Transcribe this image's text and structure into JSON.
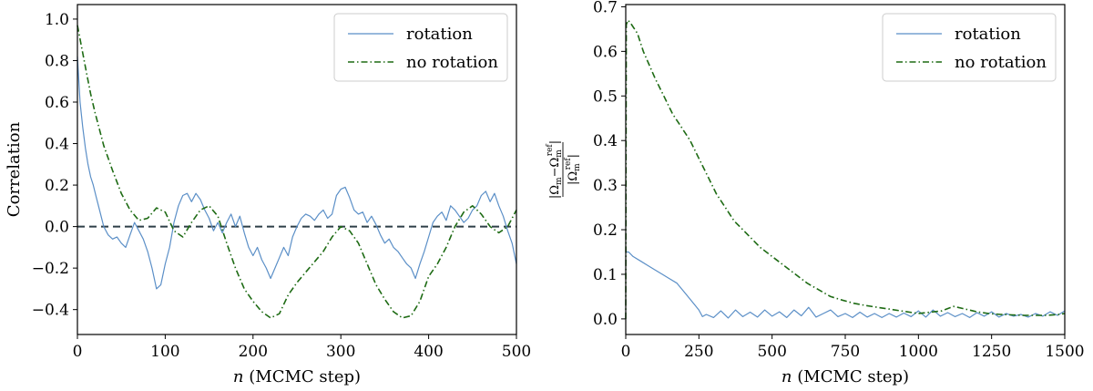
{
  "chart_data": [
    {
      "type": "line",
      "id": "left",
      "xlabel_var": "n",
      "xlabel": "(MCMC step)",
      "ylabel": "Correlation",
      "xlim": [
        0,
        500
      ],
      "ylim": [
        -0.52,
        1.07
      ],
      "xticks": [
        0,
        100,
        200,
        300,
        400,
        500
      ],
      "xtick_labels": [
        "0",
        "100",
        "200",
        "300",
        "400",
        "500"
      ],
      "yticks": [
        -0.4,
        -0.2,
        0.0,
        0.2,
        0.4,
        0.6,
        0.8,
        1.0
      ],
      "ytick_labels": [
        "−0.4",
        "−0.2",
        "0.0",
        "0.2",
        "0.4",
        "0.6",
        "0.8",
        "1.0"
      ],
      "hline": 0.0,
      "legend": {
        "position": "top-right",
        "entries": [
          "rotation",
          "no rotation"
        ]
      },
      "series": [
        {
          "name": "rotation",
          "color": "#5b8fc7",
          "style": "solid",
          "x": [
            0,
            3,
            6,
            9,
            12,
            15,
            18,
            21,
            24,
            27,
            30,
            35,
            40,
            45,
            50,
            55,
            60,
            65,
            70,
            75,
            80,
            85,
            90,
            95,
            100,
            105,
            110,
            115,
            120,
            125,
            130,
            135,
            140,
            145,
            150,
            155,
            160,
            165,
            170,
            175,
            180,
            185,
            190,
            195,
            200,
            205,
            210,
            215,
            220,
            225,
            230,
            235,
            240,
            245,
            250,
            255,
            260,
            265,
            270,
            275,
            280,
            285,
            290,
            295,
            300,
            305,
            310,
            315,
            320,
            325,
            330,
            335,
            340,
            345,
            350,
            355,
            360,
            365,
            370,
            375,
            380,
            385,
            390,
            395,
            400,
            405,
            410,
            415,
            420,
            425,
            430,
            435,
            440,
            445,
            450,
            455,
            460,
            465,
            470,
            475,
            480,
            485,
            490,
            495,
            500
          ],
          "y": [
            0.82,
            0.6,
            0.48,
            0.38,
            0.3,
            0.24,
            0.2,
            0.15,
            0.1,
            0.05,
            0.0,
            -0.04,
            -0.06,
            -0.05,
            -0.08,
            -0.1,
            -0.04,
            0.02,
            -0.02,
            -0.06,
            -0.12,
            -0.2,
            -0.3,
            -0.28,
            -0.18,
            -0.1,
            0.02,
            0.1,
            0.15,
            0.16,
            0.12,
            0.16,
            0.13,
            0.08,
            0.04,
            -0.02,
            0.02,
            -0.03,
            0.02,
            0.06,
            0.0,
            0.05,
            -0.03,
            -0.1,
            -0.14,
            -0.1,
            -0.16,
            -0.2,
            -0.25,
            -0.2,
            -0.15,
            -0.1,
            -0.14,
            -0.05,
            0.0,
            0.04,
            0.06,
            0.05,
            0.03,
            0.06,
            0.08,
            0.04,
            0.06,
            0.15,
            0.18,
            0.19,
            0.14,
            0.08,
            0.06,
            0.07,
            0.02,
            0.05,
            0.01,
            -0.04,
            -0.08,
            -0.06,
            -0.1,
            -0.12,
            -0.15,
            -0.18,
            -0.2,
            -0.25,
            -0.18,
            -0.12,
            -0.05,
            0.02,
            0.05,
            0.07,
            0.03,
            0.1,
            0.08,
            0.05,
            0.02,
            0.04,
            0.08,
            0.1,
            0.15,
            0.17,
            0.12,
            0.16,
            0.1,
            0.05,
            -0.02,
            -0.08,
            -0.18
          ]
        },
        {
          "name": "no rotation",
          "color": "#1e6b14",
          "style": "dashdot",
          "x": [
            0,
            5,
            10,
            15,
            20,
            25,
            30,
            40,
            50,
            60,
            70,
            80,
            90,
            100,
            110,
            120,
            130,
            140,
            150,
            160,
            170,
            180,
            190,
            200,
            210,
            220,
            230,
            240,
            250,
            260,
            270,
            280,
            290,
            300,
            310,
            320,
            330,
            340,
            350,
            360,
            370,
            380,
            390,
            400,
            410,
            420,
            430,
            440,
            450,
            460,
            470,
            480,
            490,
            500
          ],
          "y": [
            0.97,
            0.86,
            0.75,
            0.64,
            0.55,
            0.47,
            0.39,
            0.27,
            0.16,
            0.08,
            0.03,
            0.04,
            0.09,
            0.07,
            -0.02,
            -0.05,
            0.02,
            0.08,
            0.1,
            0.05,
            -0.08,
            -0.2,
            -0.3,
            -0.36,
            -0.41,
            -0.44,
            -0.42,
            -0.33,
            -0.27,
            -0.22,
            -0.17,
            -0.12,
            -0.05,
            0.0,
            -0.02,
            -0.08,
            -0.18,
            -0.28,
            -0.35,
            -0.41,
            -0.44,
            -0.43,
            -0.36,
            -0.24,
            -0.18,
            -0.1,
            0.0,
            0.07,
            0.1,
            0.06,
            0.0,
            -0.03,
            0.0,
            0.08
          ]
        }
      ]
    },
    {
      "type": "line",
      "id": "right",
      "xlabel_var": "n",
      "xlabel": "(MCMC step)",
      "ylabel": "|Ωm − Ωm^ref| / |Ωm^ref|",
      "xlim": [
        0,
        1500
      ],
      "ylim": [
        -0.035,
        0.705
      ],
      "xticks": [
        0,
        250,
        500,
        750,
        1000,
        1250,
        1500
      ],
      "xtick_labels": [
        "0",
        "250",
        "500",
        "750",
        "1000",
        "1250",
        "1500"
      ],
      "yticks": [
        0.0,
        0.1,
        0.2,
        0.3,
        0.4,
        0.5,
        0.6,
        0.7
      ],
      "ytick_labels": [
        "0.0",
        "0.1",
        "0.2",
        "0.3",
        "0.4",
        "0.5",
        "0.6",
        "0.7"
      ],
      "legend": {
        "position": "top-right",
        "entries": [
          "rotation",
          "no rotation"
        ]
      },
      "series": [
        {
          "name": "rotation",
          "color": "#5b8fc7",
          "style": "solid",
          "x": [
            0,
            10,
            25,
            50,
            75,
            100,
            125,
            150,
            175,
            200,
            225,
            250,
            262,
            275,
            300,
            325,
            350,
            375,
            400,
            425,
            450,
            475,
            500,
            525,
            550,
            575,
            600,
            625,
            650,
            675,
            700,
            725,
            750,
            775,
            800,
            825,
            850,
            875,
            900,
            925,
            950,
            975,
            1000,
            1025,
            1050,
            1075,
            1100,
            1125,
            1150,
            1175,
            1200,
            1225,
            1250,
            1275,
            1300,
            1325,
            1350,
            1375,
            1400,
            1425,
            1450,
            1475,
            1500
          ],
          "y": [
            0.15,
            0.15,
            0.14,
            0.13,
            0.12,
            0.11,
            0.1,
            0.09,
            0.08,
            0.06,
            0.04,
            0.02,
            0.005,
            0.01,
            0.003,
            0.018,
            0.002,
            0.02,
            0.005,
            0.015,
            0.004,
            0.02,
            0.006,
            0.016,
            0.003,
            0.02,
            0.007,
            0.026,
            0.004,
            0.012,
            0.02,
            0.005,
            0.012,
            0.003,
            0.015,
            0.004,
            0.012,
            0.003,
            0.012,
            0.004,
            0.013,
            0.005,
            0.018,
            0.004,
            0.02,
            0.006,
            0.014,
            0.005,
            0.012,
            0.003,
            0.014,
            0.006,
            0.016,
            0.004,
            0.012,
            0.006,
            0.01,
            0.004,
            0.012,
            0.006,
            0.016,
            0.008,
            0.018
          ]
        },
        {
          "name": "no rotation",
          "color": "#1e6b14",
          "style": "dashdot",
          "x": [
            0,
            2,
            8,
            20,
            40,
            60,
            80,
            100,
            130,
            160,
            190,
            220,
            250,
            280,
            310,
            340,
            370,
            400,
            430,
            460,
            500,
            540,
            580,
            620,
            660,
            700,
            740,
            780,
            820,
            860,
            900,
            940,
            980,
            1000,
            1040,
            1080,
            1120,
            1160,
            1200,
            1240,
            1280,
            1320,
            1360,
            1400,
            1440,
            1480,
            1500
          ],
          "y": [
            0.0,
            0.66,
            0.67,
            0.66,
            0.64,
            0.6,
            0.57,
            0.54,
            0.5,
            0.46,
            0.43,
            0.4,
            0.36,
            0.32,
            0.28,
            0.25,
            0.22,
            0.2,
            0.18,
            0.16,
            0.14,
            0.12,
            0.1,
            0.08,
            0.065,
            0.05,
            0.042,
            0.035,
            0.03,
            0.026,
            0.022,
            0.018,
            0.014,
            0.012,
            0.015,
            0.018,
            0.028,
            0.022,
            0.016,
            0.012,
            0.01,
            0.009,
            0.008,
            0.008,
            0.008,
            0.01,
            0.012
          ]
        }
      ]
    }
  ]
}
